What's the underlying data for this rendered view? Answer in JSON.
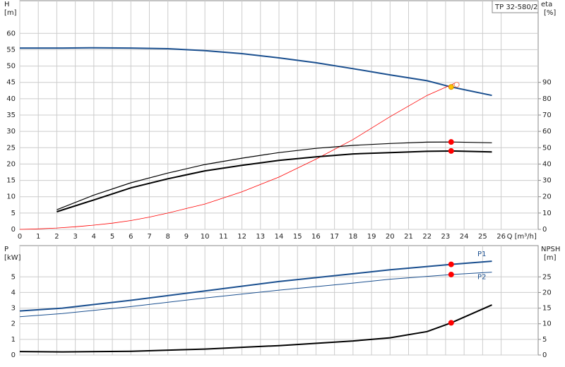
{
  "chart_data": [
    {
      "type": "line",
      "title": "TP 32-580/2",
      "ylabel": "H",
      "yunit": "[m]",
      "y2label": "eta",
      "y2unit": "[%]",
      "xlabel": "Q [m³/h]",
      "xlim": [
        0,
        28
      ],
      "xticks": [
        0,
        1,
        2,
        3,
        4,
        5,
        6,
        7,
        8,
        9,
        10,
        11,
        12,
        13,
        14,
        15,
        16,
        17,
        18,
        19,
        20,
        21,
        22,
        23,
        24,
        25,
        26
      ],
      "show_xtick_labels": true,
      "ylim": [
        0,
        70
      ],
      "yticks": [
        0,
        5,
        10,
        15,
        20,
        25,
        30,
        35,
        40,
        45,
        50,
        55,
        60
      ],
      "y2lim": [
        0,
        140
      ],
      "y2ticks": [
        0,
        10,
        20,
        30,
        40,
        50,
        60,
        70,
        80,
        90
      ],
      "grid": true,
      "series": [
        {
          "color": "#1a4f8f",
          "line_width": 2,
          "axis": "y",
          "x": [
            0,
            2.3,
            4,
            6,
            8,
            10,
            12,
            14,
            16,
            18,
            20,
            22,
            23.3,
            25.5
          ],
          "values": [
            55.5,
            55.5,
            55.6,
            55.5,
            55.3,
            54.7,
            53.8,
            52.5,
            51,
            49.2,
            47.3,
            45.5,
            43.6,
            41
          ]
        },
        {
          "color": "#ff0000",
          "line_width": 0.8,
          "axis": "y2",
          "x": [
            0,
            1,
            2,
            3,
            4,
            5,
            6,
            7,
            8,
            9,
            10,
            12,
            14,
            16,
            18,
            20,
            22,
            23.6
          ],
          "values": [
            0,
            0.3,
            0.8,
            1.6,
            2.6,
            3.8,
            5.4,
            7.5,
            10,
            12.8,
            15.5,
            23,
            32,
            43,
            55,
            69,
            82,
            90
          ]
        },
        {
          "color": "#000000",
          "line_width": 1.2,
          "axis": "y2",
          "x": [
            2,
            4,
            6,
            8,
            10,
            12,
            14,
            16,
            18,
            20,
            22,
            23.3,
            25.5
          ],
          "values": [
            12,
            21,
            28.5,
            34.5,
            39.7,
            43.6,
            47,
            49.6,
            51.4,
            52.6,
            53.4,
            53.5,
            53
          ]
        },
        {
          "color": "#000000",
          "line_width": 2,
          "axis": "y2",
          "x": [
            2,
            4,
            6,
            8,
            10,
            12,
            14,
            16,
            18,
            20,
            22,
            23.3,
            25.5
          ],
          "values": [
            10.8,
            18,
            25.4,
            31,
            35.8,
            39.2,
            42.2,
            44.4,
            46.2,
            47,
            47.8,
            48,
            47.4
          ]
        }
      ],
      "points": [
        {
          "x": 23.3,
          "y": 53.5,
          "axis": "y2",
          "color": "#ff0000",
          "filled": true
        },
        {
          "x": 23.3,
          "y": 48,
          "axis": "y2",
          "color": "#ff0000",
          "filled": true
        },
        {
          "x": 23.6,
          "y": 44.3,
          "axis": "y",
          "color": "#f08060",
          "filled": false
        },
        {
          "x": 23.3,
          "y": 43.6,
          "axis": "y",
          "color": "#ffc000",
          "filled": true
        }
      ]
    },
    {
      "type": "line",
      "ylabel": "P",
      "yunit": "[kW]",
      "y2label": "NPSH",
      "y2unit": "[m]",
      "xlim": [
        0,
        28
      ],
      "xticks": [
        0,
        1,
        2,
        3,
        4,
        5,
        6,
        7,
        8,
        9,
        10,
        11,
        12,
        13,
        14,
        15,
        16,
        17,
        18,
        19,
        20,
        21,
        22,
        23,
        24,
        25,
        26
      ],
      "show_xtick_labels": false,
      "ylim": [
        0,
        7
      ],
      "yticks": [
        0,
        1,
        2,
        3,
        4,
        5
      ],
      "y2lim": [
        0,
        35
      ],
      "y2ticks": [
        0,
        5,
        10,
        15,
        20,
        25
      ],
      "grid": true,
      "series": [
        {
          "name": "P1",
          "color": "#1a4f8f",
          "line_width": 2,
          "axis": "y",
          "x": [
            0,
            2.3,
            6,
            10,
            14,
            18,
            20,
            23.3,
            25.5
          ],
          "values": [
            2.82,
            3.0,
            3.5,
            4.1,
            4.7,
            5.2,
            5.45,
            5.8,
            6.0
          ]
        },
        {
          "name": "P2",
          "color": "#1a4f8f",
          "line_width": 1,
          "axis": "y",
          "x": [
            0,
            2.3,
            6,
            10,
            14,
            18,
            20,
            23.3,
            25.5
          ],
          "values": [
            2.45,
            2.65,
            3.1,
            3.65,
            4.15,
            4.6,
            4.85,
            5.15,
            5.3
          ]
        },
        {
          "color": "#000000",
          "line_width": 2,
          "axis": "y2",
          "x": [
            0,
            2.3,
            6,
            10,
            14,
            18,
            20,
            22,
            23.3,
            25.5
          ],
          "values": [
            1.1,
            1,
            1.2,
            1.9,
            3,
            4.5,
            5.5,
            7.5,
            10.3,
            16
          ]
        }
      ],
      "points": [
        {
          "x": 23.3,
          "y": 5.8,
          "axis": "y",
          "color": "#ff0000",
          "filled": true
        },
        {
          "x": 23.3,
          "y": 5.15,
          "axis": "y",
          "color": "#ff0000",
          "filled": true
        },
        {
          "x": 23.3,
          "y": 10.3,
          "axis": "y2",
          "color": "#ff0000",
          "filled": true
        }
      ]
    }
  ]
}
